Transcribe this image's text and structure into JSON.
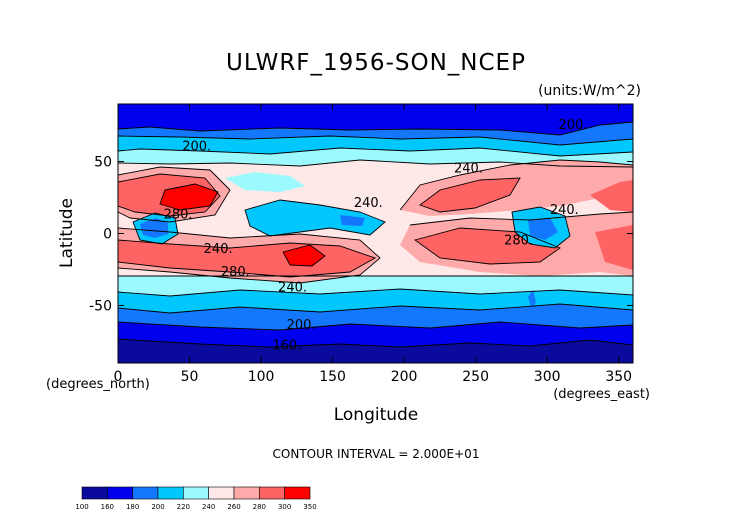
{
  "chart_data": {
    "type": "heatmap",
    "title": "ULWRF_1956-SON_NCEP",
    "units": "(units:W/m^2)",
    "xlabel": "Longitude",
    "ylabel": "Latitude",
    "x_unit_note": "(degrees_east)",
    "y_unit_note": "(degrees_north)",
    "footer": "CONTOUR INTERVAL = 2.000E+01",
    "xlim": [
      0,
      360
    ],
    "ylim": [
      -90,
      90
    ],
    "x_ticks": [
      0,
      50,
      100,
      150,
      200,
      250,
      300,
      350
    ],
    "y_ticks": [
      -50,
      0,
      50
    ],
    "contour_labels": [
      {
        "text": "200.",
        "lon": 55,
        "lat": 61
      },
      {
        "text": "200.",
        "lon": 318,
        "lat": 76
      },
      {
        "text": "240.",
        "lon": 245,
        "lat": 46
      },
      {
        "text": "240.",
        "lon": 175,
        "lat": 22
      },
      {
        "text": "240.",
        "lon": 312,
        "lat": 17
      },
      {
        "text": "280.",
        "lon": 42,
        "lat": 14
      },
      {
        "text": "240.",
        "lon": 70,
        "lat": -10
      },
      {
        "text": "280.",
        "lon": 82,
        "lat": -26
      },
      {
        "text": "280.",
        "lon": 280,
        "lat": -4
      },
      {
        "text": "240.",
        "lon": 122,
        "lat": -37
      },
      {
        "text": "200.",
        "lon": 128,
        "lat": -63
      },
      {
        "text": "160.",
        "lon": 118,
        "lat": -77
      }
    ],
    "colorbar": {
      "levels": [
        "100",
        "160",
        "180",
        "200",
        "220",
        "240",
        "260",
        "280",
        "300",
        "350"
      ],
      "colors": [
        "#0a0a9c",
        "#0000ee",
        "#1478ff",
        "#00c8ff",
        "#9cfaff",
        "#ffe8e8",
        "#ffaaaa",
        "#ff6464",
        "#ff0000"
      ]
    },
    "band_colors": {
      "lt100": "#0a0a9c",
      "160": "#0000ee",
      "180": "#1478ff",
      "200": "#00c8ff",
      "220": "#9cfaff",
      "240": "#ffe8e8",
      "260": "#ffaaaa",
      "280": "#ff6464",
      "300": "#ff0000"
    }
  }
}
